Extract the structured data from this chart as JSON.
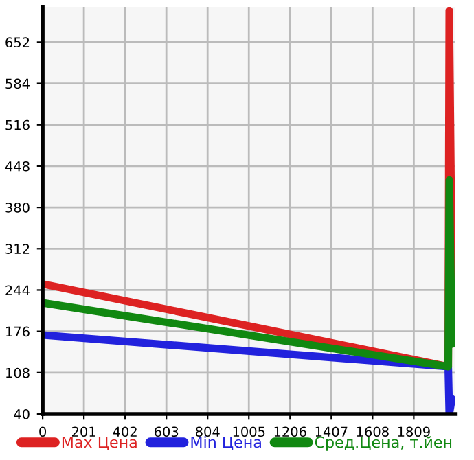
{
  "chart_data": {
    "type": "line",
    "xlim": [
      0,
      2010
    ],
    "ylim": [
      40,
      710
    ],
    "xticks": [
      0,
      201,
      402,
      603,
      804,
      1005,
      1206,
      1407,
      1608,
      1809
    ],
    "yticks": [
      40,
      108,
      176,
      244,
      312,
      380,
      448,
      516,
      584,
      652
    ],
    "grid": true,
    "legend": "bottom",
    "marker": "none",
    "line_style": "solid",
    "series": [
      {
        "name": "Max Цена",
        "color": "#dd2222",
        "x": [
          0,
          1977,
          1982,
          1995
        ],
        "values": [
          254,
          118,
          704,
          258
        ]
      },
      {
        "name": "Min Цена",
        "color": "#2222dd",
        "x": [
          0,
          1977,
          1982,
          1995
        ],
        "values": [
          170,
          118,
          40,
          65
        ]
      },
      {
        "name": "Сред.Цена, т.йен",
        "color": "#118811",
        "x": [
          0,
          1977,
          1982,
          1995
        ],
        "values": [
          223,
          118,
          425,
          155
        ]
      }
    ]
  }
}
